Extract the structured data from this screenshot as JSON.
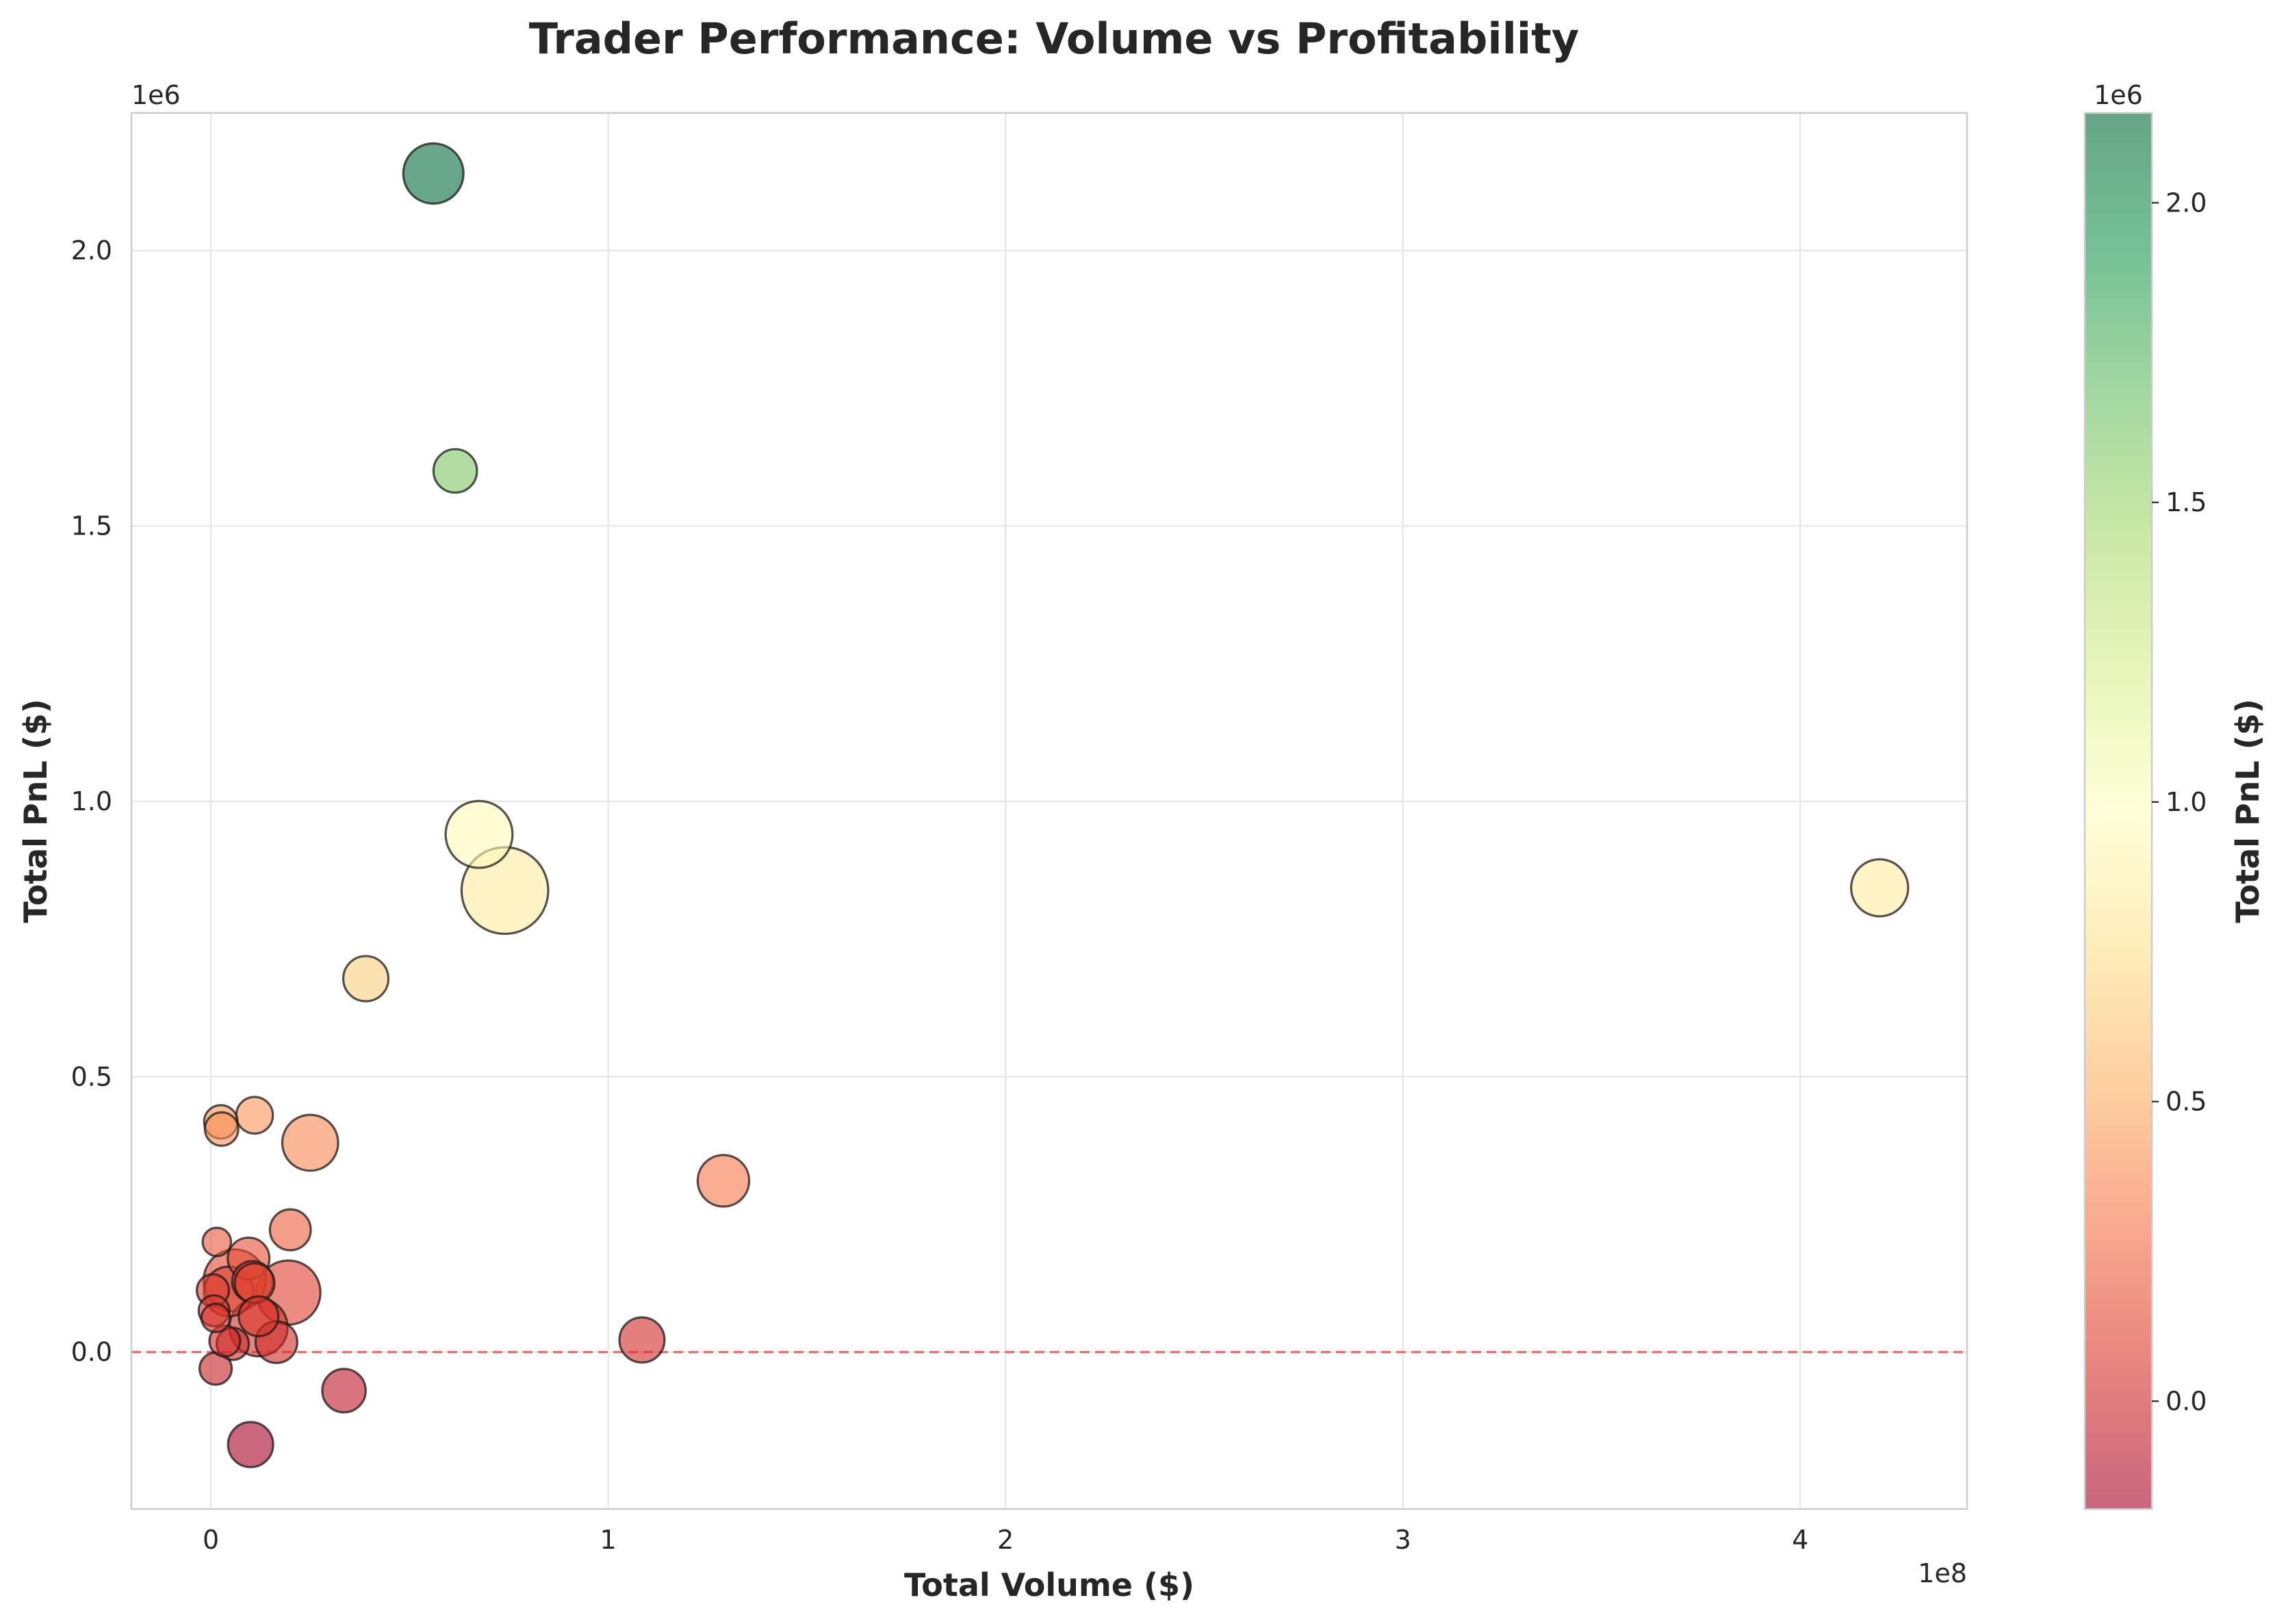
{
  "chart_data": {
    "type": "scatter",
    "title": "Trader Performance: Volume vs Profitability",
    "xlabel": "Total Volume ($)",
    "ylabel": "Total PnL ($)",
    "x_offset_label": "1e8",
    "y_offset_label": "1e6",
    "xlim": [
      -20000000,
      442000000
    ],
    "ylim": [
      -285000,
      2250000
    ],
    "x_ticks": [
      0,
      100000000,
      200000000,
      300000000,
      400000000
    ],
    "x_tick_labels": [
      "0",
      "1",
      "2",
      "3",
      "4"
    ],
    "y_ticks": [
      0,
      500000,
      1000000,
      1500000,
      2000000
    ],
    "y_tick_labels": [
      "0.0",
      "0.5",
      "1.0",
      "1.5",
      "2.0"
    ],
    "grid": true,
    "reference_line": {
      "y": 0,
      "style": "dashed",
      "color": "#e8474a"
    },
    "colorbar": {
      "label": "Total PnL ($)",
      "offset_label": "1e6",
      "range": [
        -180000,
        2150000
      ],
      "ticks": [
        0,
        500000,
        1000000,
        1500000,
        2000000
      ],
      "tick_labels": [
        "0.0",
        "0.5",
        "1.0",
        "1.5",
        "2.0"
      ],
      "colormap": "RdYlGn",
      "alpha": 0.6
    },
    "size_encoding": "relative bubble size (arbitrary units)",
    "points": [
      {
        "x": 56000000,
        "y": 2140000,
        "size": 1
      },
      {
        "x": 61500000,
        "y": 1600000,
        "size": 0.35
      },
      {
        "x": 67500000,
        "y": 940000,
        "size": 1.35
      },
      {
        "x": 74000000,
        "y": 838000,
        "size": 2.7
      },
      {
        "x": 420000000,
        "y": 843000,
        "size": 0.85
      },
      {
        "x": 39000000,
        "y": 678000,
        "size": 0.4
      },
      {
        "x": 2500000,
        "y": 418000,
        "size": 0.12
      },
      {
        "x": 2700000,
        "y": 405000,
        "size": 0.12
      },
      {
        "x": 11000000,
        "y": 430000,
        "size": 0.18
      },
      {
        "x": 25000000,
        "y": 380000,
        "size": 0.8
      },
      {
        "x": 129000000,
        "y": 311000,
        "size": 0.62
      },
      {
        "x": 20000000,
        "y": 222000,
        "size": 0.28
      },
      {
        "x": 1500000,
        "y": 200000,
        "size": 0.05
      },
      {
        "x": 9500000,
        "y": 170000,
        "size": 0.3
      },
      {
        "x": 6000000,
        "y": 130000,
        "size": 1.1
      },
      {
        "x": 10500000,
        "y": 128000,
        "size": 0.28
      },
      {
        "x": 11000000,
        "y": 125000,
        "size": 0.25
      },
      {
        "x": 500000,
        "y": 112000,
        "size": 0.1
      },
      {
        "x": 4500000,
        "y": 110000,
        "size": 0.55
      },
      {
        "x": 19500000,
        "y": 108000,
        "size": 1.2
      },
      {
        "x": 800000,
        "y": 75000,
        "size": 0.08
      },
      {
        "x": 1200000,
        "y": 62000,
        "size": 0.05
      },
      {
        "x": 12000000,
        "y": 65000,
        "size": 0.25
      },
      {
        "x": 12000000,
        "y": 45000,
        "size": 0.9
      },
      {
        "x": 108500000,
        "y": 22000,
        "size": 0.4
      },
      {
        "x": 3500000,
        "y": 20000,
        "size": 0.08
      },
      {
        "x": 5500000,
        "y": 15000,
        "size": 0.1
      },
      {
        "x": 16500000,
        "y": 18000,
        "size": 0.3
      },
      {
        "x": 1200000,
        "y": -30000,
        "size": 0.1
      },
      {
        "x": 33500000,
        "y": -70000,
        "size": 0.35
      },
      {
        "x": 10000000,
        "y": -168000,
        "size": 0.4
      }
    ]
  }
}
